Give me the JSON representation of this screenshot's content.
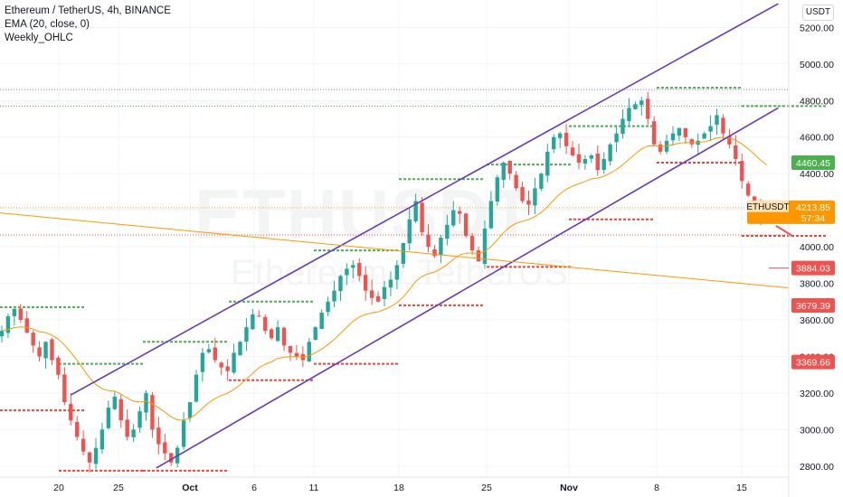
{
  "legend": {
    "title": "Ethereum / TetherUS, 4h, BINANCE",
    "line2": "EMA (20, close, 0)",
    "line3": "Weekly_OHLC"
  },
  "watermark": {
    "symbol": "ETHUSDT",
    "name": "Ethereum / TetherUS"
  },
  "currency_label": "USDT",
  "colors": {
    "up": "#26a69a",
    "down": "#ef5350",
    "ema": "#ff9800",
    "channel": "#673ab7",
    "weekly_high": "#4caf50",
    "weekly_low": "#f44336",
    "horizontal_line": "#ff9800"
  },
  "chart_data": {
    "type": "candlestick",
    "symbol": "ETHUSDT",
    "timeframe": "4h",
    "exchange": "BINANCE",
    "y_ticks": [
      2800,
      3000,
      3200,
      3400,
      3600,
      3800,
      4000,
      4200,
      4400,
      4600,
      4800,
      5000,
      5200
    ],
    "y_tick_labels": [
      "2800.00",
      "3000.00",
      "3200.00",
      "3400.00",
      "3600.00",
      "3800.00",
      "4000.00",
      "4200.00",
      "4400.00",
      "4600.00",
      "4800.00",
      "5000.00",
      "5200.00"
    ],
    "x_ticks": [
      "20",
      "25",
      "Oct",
      "6",
      "11",
      "18",
      "25",
      "Nov",
      "8",
      "15"
    ],
    "ylim": [
      2740,
      5350
    ],
    "close_path": [
      3540,
      3620,
      3660,
      3600,
      3530,
      3460,
      3400,
      3480,
      3380,
      3300,
      3150,
      3050,
      2960,
      2880,
      2820,
      2900,
      3000,
      3120,
      3180,
      3050,
      2960,
      3000,
      3100,
      3200,
      3000,
      2920,
      2870,
      2820,
      2900,
      3050,
      3150,
      3300,
      3420,
      3440,
      3380,
      3340,
      3320,
      3420,
      3480,
      3560,
      3630,
      3620,
      3540,
      3500,
      3560,
      3460,
      3420,
      3400,
      3380,
      3480,
      3560,
      3640,
      3700,
      3760,
      3840,
      3880,
      3900,
      3840,
      3760,
      3720,
      3700,
      3780,
      3820,
      3900,
      4020,
      4150,
      4250,
      4080,
      4000,
      3950,
      4050,
      4120,
      4200,
      4180,
      4060,
      3980,
      3920,
      4100,
      4250,
      4380,
      4460,
      4400,
      4320,
      4250,
      4230,
      4320,
      4400,
      4520,
      4600,
      4620,
      4550,
      4500,
      4460,
      4480,
      4500,
      4420,
      4480,
      4560,
      4620,
      4700,
      4760,
      4780,
      4800,
      4700,
      4560,
      4520,
      4580,
      4620,
      4650,
      4600,
      4560,
      4580,
      4620,
      4660,
      4720,
      4620,
      4560,
      4480,
      4360,
      4280,
      4230,
      4150,
      4213.85
    ],
    "ema_period": 20,
    "channel": {
      "upper": {
        "from": {
          "date": "Sep 21",
          "price": 3190
        },
        "to": {
          "date": "Nov 18",
          "price": 5330
        }
      },
      "lower": {
        "from": {
          "date": "Sep 28",
          "price": 2790
        },
        "to": {
          "date": "Nov 18",
          "price": 4760
        }
      },
      "extra": {
        "from": {
          "date": "Sep 21",
          "price": 4185
        },
        "to": {
          "date": "Nov 18",
          "price": 3775
        }
      }
    },
    "weekly_ohlc": [
      {
        "high": 3670,
        "low": 3105
      },
      {
        "high": 3360,
        "low": 2775
      },
      {
        "high": 3480,
        "low": 2775
      },
      {
        "high": 3700,
        "low": 3270
      },
      {
        "high": 3980,
        "low": 3360
      },
      {
        "high": 4370,
        "low": 3680
      },
      {
        "high": 4450,
        "low": 3890
      },
      {
        "high": 4660,
        "low": 4150
      },
      {
        "high": 4870,
        "low": 4460
      },
      {
        "high": 4770,
        "low": 4060
      }
    ],
    "horizontal_lines": [
      {
        "price": 4860,
        "color": "#888888"
      },
      {
        "price": 4770,
        "color": "#4caf50"
      },
      {
        "price": 4213.85,
        "color": "#f5a623"
      },
      {
        "price": 4065,
        "color": "#ef5350"
      }
    ],
    "price_labels": [
      {
        "text": "4460.45",
        "price": 4460.45,
        "color": "#4caf50"
      },
      {
        "text": "3884.03",
        "price": 3884.03,
        "color": "#ef5350"
      },
      {
        "text": "3679.39",
        "price": 3679.39,
        "color": "#ef5350"
      },
      {
        "text": "3369.66",
        "price": 3369.66,
        "color": "#ef5350"
      }
    ],
    "current": {
      "symbol": "ETHUSDT",
      "price": "4213.85",
      "countdown": "57:34",
      "color": "#ff9800"
    },
    "label_line": {
      "price": 3884.03
    }
  }
}
